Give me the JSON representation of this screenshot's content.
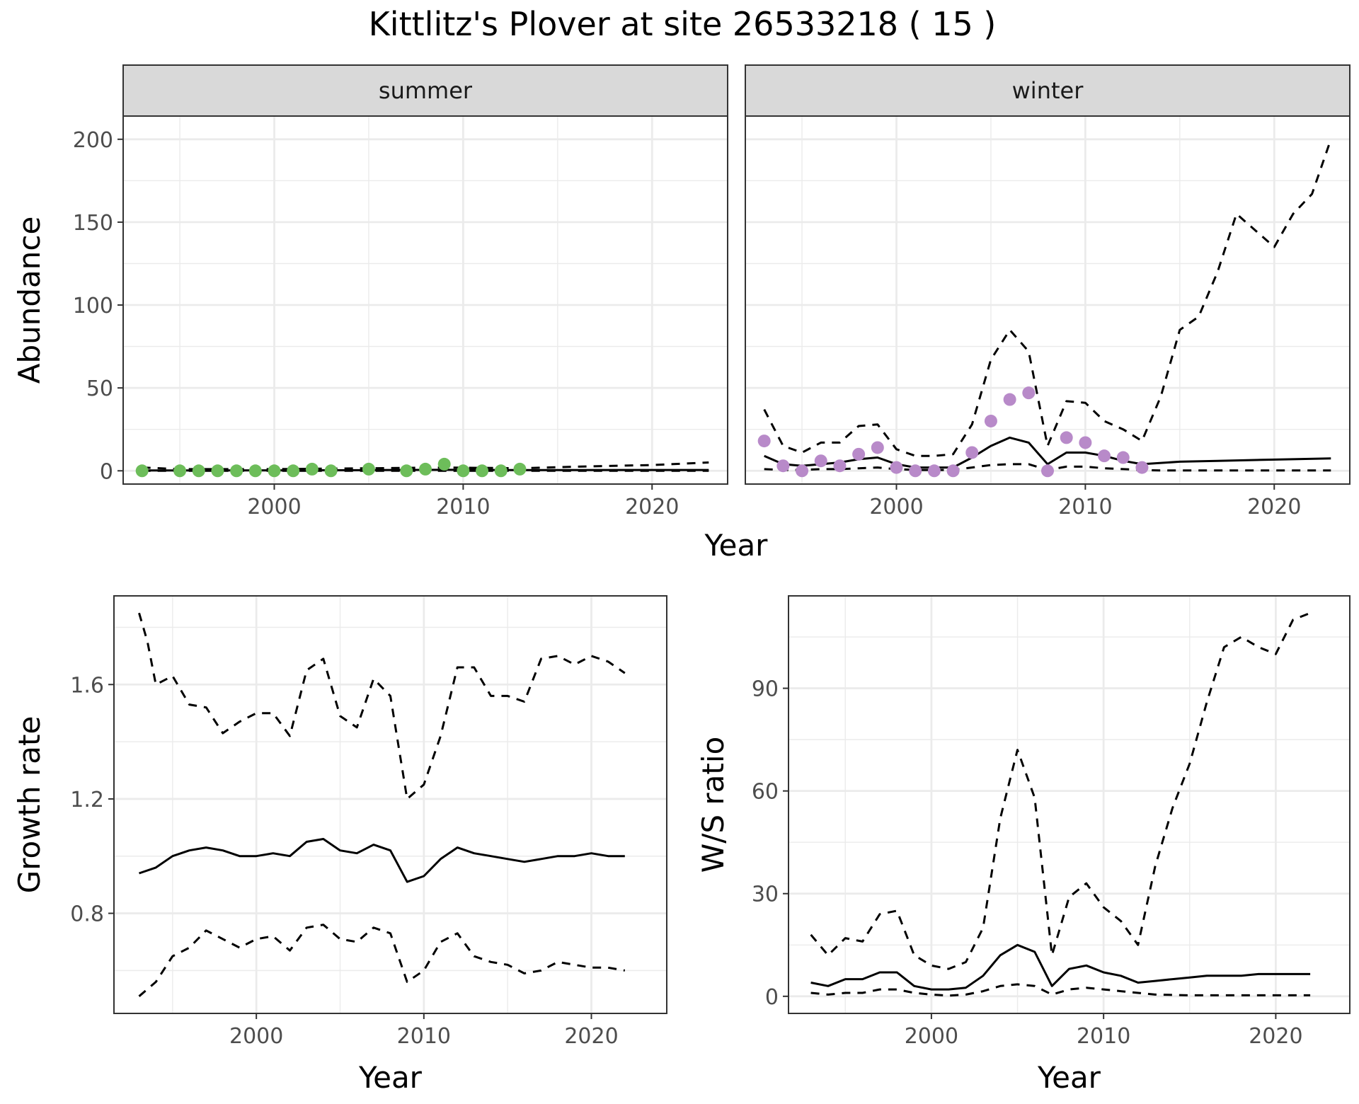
{
  "figure": {
    "title": "Kittlitz's Plover at site 26533218 ( 15 )",
    "colors": {
      "summer_points": "#6dbd5a",
      "winter_points": "#b88ac9",
      "lines": "#000000",
      "strip_fill": "#d9d9d9",
      "grid": "#ebebeb"
    }
  },
  "chart_data": [
    {
      "id": "abundance",
      "type": "scatter",
      "title": "",
      "xlabel": "Year",
      "ylabel": "Abundance",
      "xlim": [
        1992,
        2024
      ],
      "ylim": [
        -8,
        214
      ],
      "xticks": [
        2000,
        2010,
        2020
      ],
      "yticks": [
        0,
        50,
        100,
        150,
        200
      ],
      "grid": true,
      "legend": "none",
      "facets": [
        {
          "label": "summer",
          "points": {
            "color": "#6dbd5a",
            "x": [
              1993,
              1995,
              1996,
              1997,
              1998,
              1999,
              2000,
              2001,
              2002,
              2003,
              2005,
              2007,
              2008,
              2009,
              2010,
              2011,
              2012,
              2013
            ],
            "y": [
              0,
              0,
              0,
              0,
              0,
              0,
              0,
              0,
              1,
              0,
              1,
              0,
              1,
              4,
              0,
              0,
              0,
              1
            ]
          },
          "series": [
            {
              "style": "dashed",
              "x": [
                1993,
                1995,
                2000,
                2005,
                2009,
                2013,
                2016,
                2020,
                2023
              ],
              "y": [
                2,
                1,
                1,
                1.5,
                2,
                1.5,
                2.5,
                3.5,
                5
              ]
            },
            {
              "style": "solid",
              "x": [
                1993,
                2000,
                2005,
                2009,
                2013,
                2023
              ],
              "y": [
                0.2,
                0.3,
                0.4,
                0.6,
                0.4,
                0.5
              ]
            },
            {
              "style": "dashed",
              "x": [
                1993,
                2023
              ],
              "y": [
                0,
                0
              ]
            }
          ]
        },
        {
          "label": "winter",
          "points": {
            "color": "#b88ac9",
            "x": [
              1993,
              1994,
              1995,
              1996,
              1997,
              1998,
              1999,
              2000,
              2001,
              2002,
              2003,
              2004,
              2005,
              2006,
              2007,
              2008,
              2009,
              2010,
              2011,
              2012,
              2013
            ],
            "y": [
              18,
              3,
              0,
              6,
              3,
              10,
              14,
              2,
              0,
              0,
              0,
              11,
              30,
              43,
              47,
              0,
              20,
              17,
              9,
              8,
              2
            ]
          },
          "series": [
            {
              "style": "dashed",
              "x": [
                1993,
                1994,
                1995,
                1996,
                1997,
                1998,
                1999,
                2000,
                2001,
                2002,
                2003,
                2004,
                2005,
                2006,
                2007,
                2008,
                2009,
                2010,
                2011,
                2012,
                2013,
                2014,
                2015,
                2016,
                2017,
                2018,
                2019,
                2020,
                2021,
                2022,
                2023
              ],
              "y": [
                37,
                15,
                11,
                17,
                17,
                27,
                28,
                13,
                9,
                9,
                10,
                28,
                67,
                85,
                72,
                15,
                42,
                41,
                30,
                25,
                18,
                45,
                85,
                93,
                120,
                155,
                145,
                135,
                155,
                167,
                200
              ]
            },
            {
              "style": "solid",
              "x": [
                1993,
                1994,
                1995,
                1996,
                1997,
                1998,
                1999,
                2000,
                2001,
                2002,
                2003,
                2004,
                2005,
                2006,
                2007,
                2008,
                2009,
                2010,
                2011,
                2012,
                2013,
                2015,
                2017,
                2019,
                2021,
                2023
              ],
              "y": [
                9,
                4,
                3,
                4,
                5,
                7,
                8,
                4,
                2,
                2,
                2,
                8,
                15,
                20,
                17,
                4,
                11,
                11,
                9,
                6,
                4,
                5.5,
                6,
                6.5,
                7,
                7.5
              ]
            },
            {
              "style": "dashed",
              "x": [
                1993,
                1994,
                1995,
                1996,
                1997,
                1998,
                1999,
                2000,
                2001,
                2002,
                2003,
                2004,
                2005,
                2006,
                2007,
                2008,
                2009,
                2010,
                2011,
                2012,
                2013,
                2014,
                2023
              ],
              "y": [
                1,
                0.5,
                0.5,
                1,
                1,
                1.5,
                2,
                1,
                0.5,
                0.5,
                0.5,
                2,
                3.5,
                4,
                4,
                0.5,
                2.5,
                2.5,
                1.5,
                1,
                0.5,
                0.2,
                0.2
              ]
            }
          ]
        }
      ]
    },
    {
      "id": "growth",
      "type": "line",
      "title": "",
      "xlabel": "Year",
      "ylabel": "Growth rate",
      "xlim": [
        1991.5,
        2024.5
      ],
      "ylim": [
        0.45,
        1.91
      ],
      "xticks": [
        2000,
        2010,
        2020
      ],
      "yticks": [
        0.8,
        1.2,
        1.6
      ],
      "ytick_labels": [
        "0.8",
        "1.2",
        "1.6"
      ],
      "grid": true,
      "legend": "none",
      "series": [
        {
          "style": "dashed",
          "x": [
            1993,
            1993.5,
            1994,
            1995,
            1996,
            1997,
            1998,
            1999,
            2000,
            2001,
            2002,
            2003,
            2004,
            2005,
            2006,
            2007,
            2008,
            2009,
            2010,
            2011,
            2012,
            2013,
            2014,
            2015,
            2016,
            2017,
            2018,
            2019,
            2020,
            2021,
            2022
          ],
          "y": [
            1.85,
            1.75,
            1.6,
            1.63,
            1.53,
            1.52,
            1.43,
            1.47,
            1.5,
            1.5,
            1.42,
            1.65,
            1.69,
            1.49,
            1.45,
            1.62,
            1.56,
            1.2,
            1.25,
            1.42,
            1.66,
            1.66,
            1.56,
            1.56,
            1.54,
            1.69,
            1.7,
            1.67,
            1.7,
            1.68,
            1.64
          ]
        },
        {
          "style": "solid",
          "x": [
            1993,
            1994,
            1995,
            1996,
            1997,
            1998,
            1999,
            2000,
            2001,
            2002,
            2003,
            2004,
            2005,
            2006,
            2007,
            2008,
            2009,
            2010,
            2011,
            2012,
            2013,
            2014,
            2015,
            2016,
            2017,
            2018,
            2019,
            2020,
            2021,
            2022
          ],
          "y": [
            0.94,
            0.96,
            1.0,
            1.02,
            1.03,
            1.02,
            1.0,
            1.0,
            1.01,
            1.0,
            1.05,
            1.06,
            1.02,
            1.01,
            1.04,
            1.02,
            0.91,
            0.93,
            0.99,
            1.03,
            1.01,
            1.0,
            0.99,
            0.98,
            0.99,
            1.0,
            1.0,
            1.01,
            1.0,
            1.0
          ]
        },
        {
          "style": "dashed",
          "x": [
            1993,
            1994,
            1995,
            1996,
            1997,
            1998,
            1999,
            2000,
            2001,
            2002,
            2003,
            2004,
            2005,
            2006,
            2007,
            2008,
            2009,
            2010,
            2011,
            2012,
            2013,
            2014,
            2015,
            2016,
            2017,
            2018,
            2019,
            2020,
            2021,
            2022
          ],
          "y": [
            0.51,
            0.56,
            0.65,
            0.68,
            0.74,
            0.71,
            0.68,
            0.71,
            0.72,
            0.67,
            0.75,
            0.76,
            0.71,
            0.7,
            0.75,
            0.73,
            0.56,
            0.6,
            0.7,
            0.73,
            0.65,
            0.63,
            0.62,
            0.59,
            0.6,
            0.63,
            0.62,
            0.61,
            0.61,
            0.6
          ]
        }
      ]
    },
    {
      "id": "ws_ratio",
      "type": "line",
      "title": "",
      "xlabel": "Year",
      "ylabel": "W/S ratio",
      "xlim": [
        1991.7,
        2024.3
      ],
      "ylim": [
        -5,
        117
      ],
      "xticks": [
        2000,
        2010,
        2020
      ],
      "yticks": [
        0,
        30,
        60,
        90
      ],
      "grid": true,
      "legend": "none",
      "series": [
        {
          "style": "dashed",
          "x": [
            1993,
            1994,
            1995,
            1996,
            1997,
            1998,
            1999,
            2000,
            2001,
            2002,
            2003,
            2004,
            2005,
            2006,
            2007,
            2008,
            2009,
            2010,
            2011,
            2012,
            2013,
            2014,
            2015,
            2016,
            2017,
            2018,
            2019,
            2020,
            2021,
            2022
          ],
          "y": [
            18,
            12,
            17,
            16,
            24,
            25,
            12,
            9,
            8,
            10,
            20,
            52,
            72,
            58,
            12,
            29,
            33,
            26,
            22,
            15,
            38,
            55,
            68,
            86,
            102,
            105,
            102,
            100,
            110,
            112
          ]
        },
        {
          "style": "solid",
          "x": [
            1993,
            1994,
            1995,
            1996,
            1997,
            1998,
            1999,
            2000,
            2001,
            2002,
            2003,
            2004,
            2005,
            2006,
            2007,
            2008,
            2009,
            2010,
            2011,
            2012,
            2013,
            2014,
            2015,
            2016,
            2017,
            2018,
            2019,
            2020,
            2021,
            2022
          ],
          "y": [
            4,
            3,
            5,
            5,
            7,
            7,
            3,
            2,
            2,
            2.5,
            6,
            12,
            15,
            13,
            3,
            8,
            9,
            7,
            6,
            4,
            4.5,
            5,
            5.5,
            6,
            6,
            6,
            6.5,
            6.5,
            6.5,
            6.5
          ]
        },
        {
          "style": "dashed",
          "x": [
            1993,
            1994,
            1995,
            1996,
            1997,
            1998,
            1999,
            2000,
            2001,
            2002,
            2003,
            2004,
            2005,
            2006,
            2007,
            2008,
            2009,
            2010,
            2011,
            2012,
            2013,
            2014,
            2015,
            2022
          ],
          "y": [
            1,
            0.5,
            1,
            1,
            2,
            2,
            1,
            0.5,
            0.2,
            0.5,
            1.5,
            3,
            3.5,
            3,
            0.5,
            2,
            2.5,
            2,
            1.5,
            1,
            0.5,
            0.4,
            0.3,
            0.3
          ]
        }
      ]
    }
  ]
}
